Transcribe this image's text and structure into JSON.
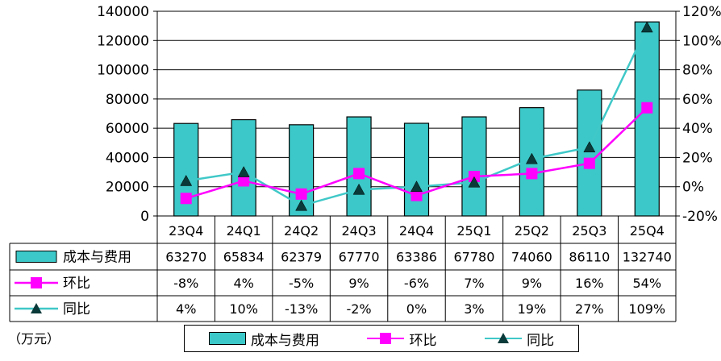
{
  "chart_data": {
    "type": "bar",
    "categories": [
      "23Q4",
      "24Q1",
      "24Q2",
      "24Q3",
      "24Q4",
      "25Q1",
      "25Q2",
      "25Q3",
      "25Q4"
    ],
    "series": [
      {
        "name": "成本与费用",
        "type": "bar",
        "axis": "left",
        "values": [
          63270,
          65834,
          62379,
          67770,
          63386,
          67780,
          74060,
          86110,
          132740
        ],
        "labels": [
          "63270",
          "65834",
          "62379",
          "67770",
          "63386",
          "67780",
          "74060",
          "86110",
          "132740"
        ]
      },
      {
        "name": "环比",
        "type": "line",
        "axis": "right",
        "values": [
          -8,
          4,
          -5,
          9,
          -6,
          7,
          9,
          16,
          54
        ],
        "labels": [
          "-8%",
          "4%",
          "-5%",
          "9%",
          "-6%",
          "7%",
          "9%",
          "16%",
          "54%"
        ]
      },
      {
        "name": "同比",
        "type": "line",
        "axis": "right",
        "values": [
          4,
          10,
          -13,
          -2,
          0,
          3,
          19,
          27,
          109
        ],
        "labels": [
          "4%",
          "10%",
          "-13%",
          "-2%",
          "0%",
          "3%",
          "19%",
          "27%",
          "109%"
        ]
      }
    ],
    "y_left": {
      "min": 0,
      "max": 140000,
      "step": 20000,
      "ticks": [
        "0",
        "20000",
        "40000",
        "60000",
        "80000",
        "100000",
        "120000",
        "140000"
      ]
    },
    "y_right": {
      "min": -20,
      "max": 120,
      "step": 20,
      "ticks": [
        "-20%",
        "0%",
        "20%",
        "40%",
        "60%",
        "80%",
        "100%",
        "120%"
      ]
    },
    "unit_label": "（万元）",
    "legend_position": "bottom",
    "grid": true
  },
  "colors": {
    "bar": "#3cc8c8",
    "mom": "#ff00ff",
    "yoy": "#40c8c8",
    "yoy_marker": "#0a3a3a"
  }
}
